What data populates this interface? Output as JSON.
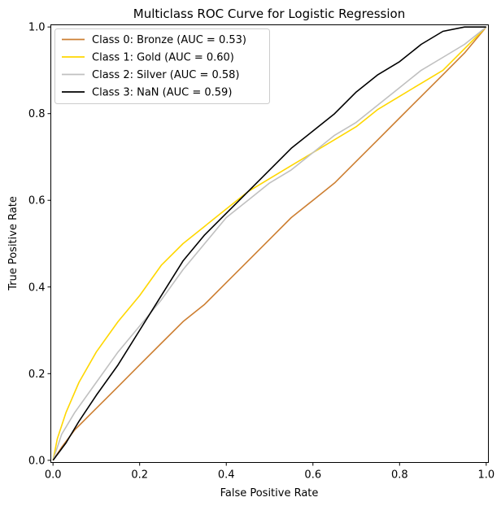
{
  "chart_data": {
    "type": "line",
    "title": "Multiclass ROC Curve for Logistic Regression",
    "xlabel": "False Positive Rate",
    "ylabel": "True Positive Rate",
    "xlim": [
      -0.005,
      1.005
    ],
    "ylim": [
      -0.005,
      1.005
    ],
    "xticks": [
      0.0,
      0.2,
      0.4,
      0.6,
      0.8,
      1.0
    ],
    "yticks": [
      0.0,
      0.2,
      0.4,
      0.6,
      0.8,
      1.0
    ],
    "xtick_labels": [
      "0.0",
      "0.2",
      "0.4",
      "0.6",
      "0.8",
      "1.0"
    ],
    "ytick_labels": [
      "0.0",
      "0.2",
      "0.4",
      "0.6",
      "0.8",
      "1.0"
    ],
    "grid": false,
    "legend_position": "top-left",
    "series": [
      {
        "name": "Class 0: Bronze (AUC = 0.53)",
        "color": "#cd7f32",
        "x": [
          0.0,
          0.02,
          0.05,
          0.1,
          0.15,
          0.2,
          0.25,
          0.3,
          0.35,
          0.4,
          0.45,
          0.5,
          0.55,
          0.6,
          0.65,
          0.7,
          0.75,
          0.8,
          0.85,
          0.9,
          0.95,
          1.0
        ],
        "y": [
          0.0,
          0.03,
          0.07,
          0.12,
          0.17,
          0.22,
          0.27,
          0.32,
          0.36,
          0.41,
          0.46,
          0.51,
          0.56,
          0.6,
          0.64,
          0.69,
          0.74,
          0.79,
          0.84,
          0.89,
          0.94,
          1.0
        ]
      },
      {
        "name": "Class 1: Gold (AUC = 0.60)",
        "color": "#ffd700",
        "x": [
          0.0,
          0.01,
          0.03,
          0.06,
          0.1,
          0.15,
          0.2,
          0.25,
          0.3,
          0.35,
          0.4,
          0.45,
          0.5,
          0.55,
          0.6,
          0.65,
          0.7,
          0.75,
          0.8,
          0.85,
          0.9,
          0.95,
          1.0
        ],
        "y": [
          0.0,
          0.05,
          0.11,
          0.18,
          0.25,
          0.32,
          0.38,
          0.45,
          0.5,
          0.54,
          0.58,
          0.62,
          0.65,
          0.68,
          0.71,
          0.74,
          0.77,
          0.81,
          0.84,
          0.87,
          0.9,
          0.95,
          1.0
        ]
      },
      {
        "name": "Class 2: Silver (AUC = 0.58)",
        "color": "#c0c0c0",
        "x": [
          0.0,
          0.02,
          0.05,
          0.1,
          0.15,
          0.2,
          0.25,
          0.3,
          0.35,
          0.4,
          0.45,
          0.5,
          0.55,
          0.6,
          0.65,
          0.7,
          0.75,
          0.8,
          0.85,
          0.9,
          0.95,
          1.0
        ],
        "y": [
          0.0,
          0.06,
          0.11,
          0.18,
          0.25,
          0.31,
          0.37,
          0.44,
          0.5,
          0.56,
          0.6,
          0.64,
          0.67,
          0.71,
          0.75,
          0.78,
          0.82,
          0.86,
          0.9,
          0.93,
          0.96,
          1.0
        ]
      },
      {
        "name": "Class 3: NaN (AUC = 0.59)",
        "color": "#000000",
        "x": [
          0.0,
          0.03,
          0.06,
          0.1,
          0.15,
          0.2,
          0.25,
          0.3,
          0.35,
          0.4,
          0.45,
          0.5,
          0.55,
          0.6,
          0.65,
          0.7,
          0.75,
          0.8,
          0.85,
          0.9,
          0.95,
          1.0
        ],
        "y": [
          0.0,
          0.04,
          0.09,
          0.15,
          0.22,
          0.3,
          0.38,
          0.46,
          0.52,
          0.57,
          0.62,
          0.67,
          0.72,
          0.76,
          0.8,
          0.85,
          0.89,
          0.92,
          0.96,
          0.99,
          1.0,
          1.0
        ]
      }
    ]
  }
}
